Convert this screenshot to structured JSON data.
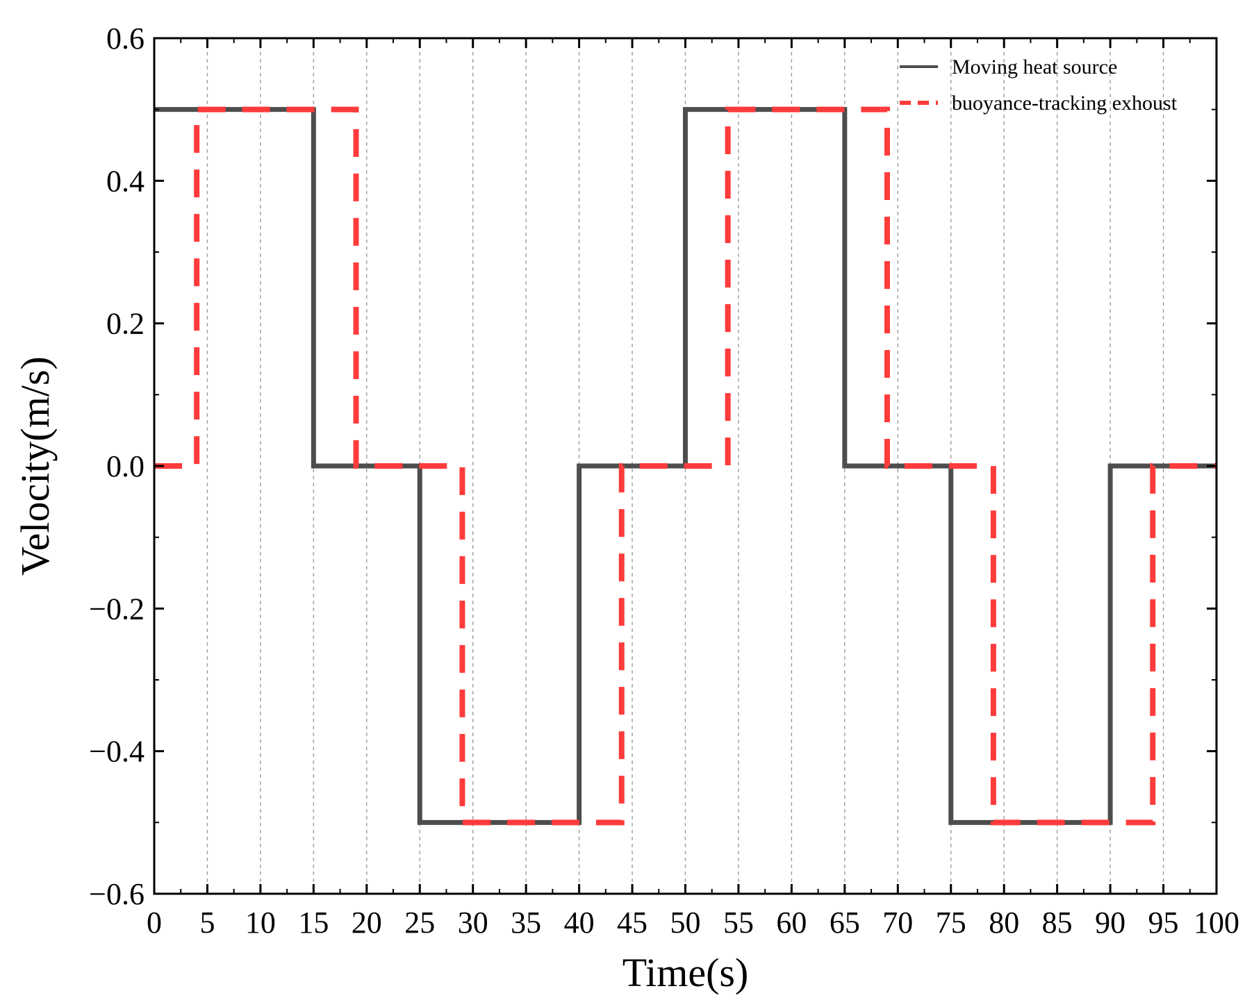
{
  "chart_data": {
    "type": "line",
    "step": true,
    "xlabel": "Time(s)",
    "ylabel": "Velocity(m/s)",
    "xlim": [
      0,
      100
    ],
    "ylim": [
      -0.6,
      0.6
    ],
    "xticks": [
      "0",
      "5",
      "10",
      "15",
      "20",
      "25",
      "30",
      "35",
      "40",
      "45",
      "50",
      "55",
      "60",
      "65",
      "70",
      "75",
      "80",
      "85",
      "90",
      "95",
      "100"
    ],
    "yticks": [
      "0.6",
      "0.4",
      "0.2",
      "0.0",
      "−0.2",
      "−0.4",
      "−0.6"
    ],
    "ytick_values": [
      0.6,
      0.4,
      0.2,
      0.0,
      -0.2,
      -0.4,
      -0.6
    ],
    "grid": "vertical-dashed",
    "legend_position": "top-right",
    "series": [
      {
        "name": "Moving heat source",
        "color": "#4d4d4d",
        "style": "solid",
        "points": [
          [
            0,
            0.5
          ],
          [
            15,
            0.5
          ],
          [
            15,
            0
          ],
          [
            25,
            0
          ],
          [
            25,
            -0.5
          ],
          [
            40,
            -0.5
          ],
          [
            40,
            0
          ],
          [
            50,
            0
          ],
          [
            50,
            0.5
          ],
          [
            65,
            0.5
          ],
          [
            65,
            0
          ],
          [
            75,
            0
          ],
          [
            75,
            -0.5
          ],
          [
            90,
            -0.5
          ],
          [
            90,
            0
          ],
          [
            100,
            0
          ]
        ]
      },
      {
        "name": "buoyance-tracking exhoust",
        "color": "#ff3b3b",
        "style": "dashed",
        "points": [
          [
            0,
            0
          ],
          [
            4,
            0
          ],
          [
            4,
            0.5
          ],
          [
            19,
            0.5
          ],
          [
            19,
            0
          ],
          [
            29,
            0
          ],
          [
            29,
            -0.5
          ],
          [
            44,
            -0.5
          ],
          [
            44,
            0
          ],
          [
            54,
            0
          ],
          [
            54,
            0.5
          ],
          [
            69,
            0.5
          ],
          [
            69,
            0
          ],
          [
            79,
            0
          ],
          [
            79,
            -0.5
          ],
          [
            94,
            -0.5
          ],
          [
            94,
            0
          ],
          [
            100,
            0
          ]
        ]
      }
    ]
  }
}
